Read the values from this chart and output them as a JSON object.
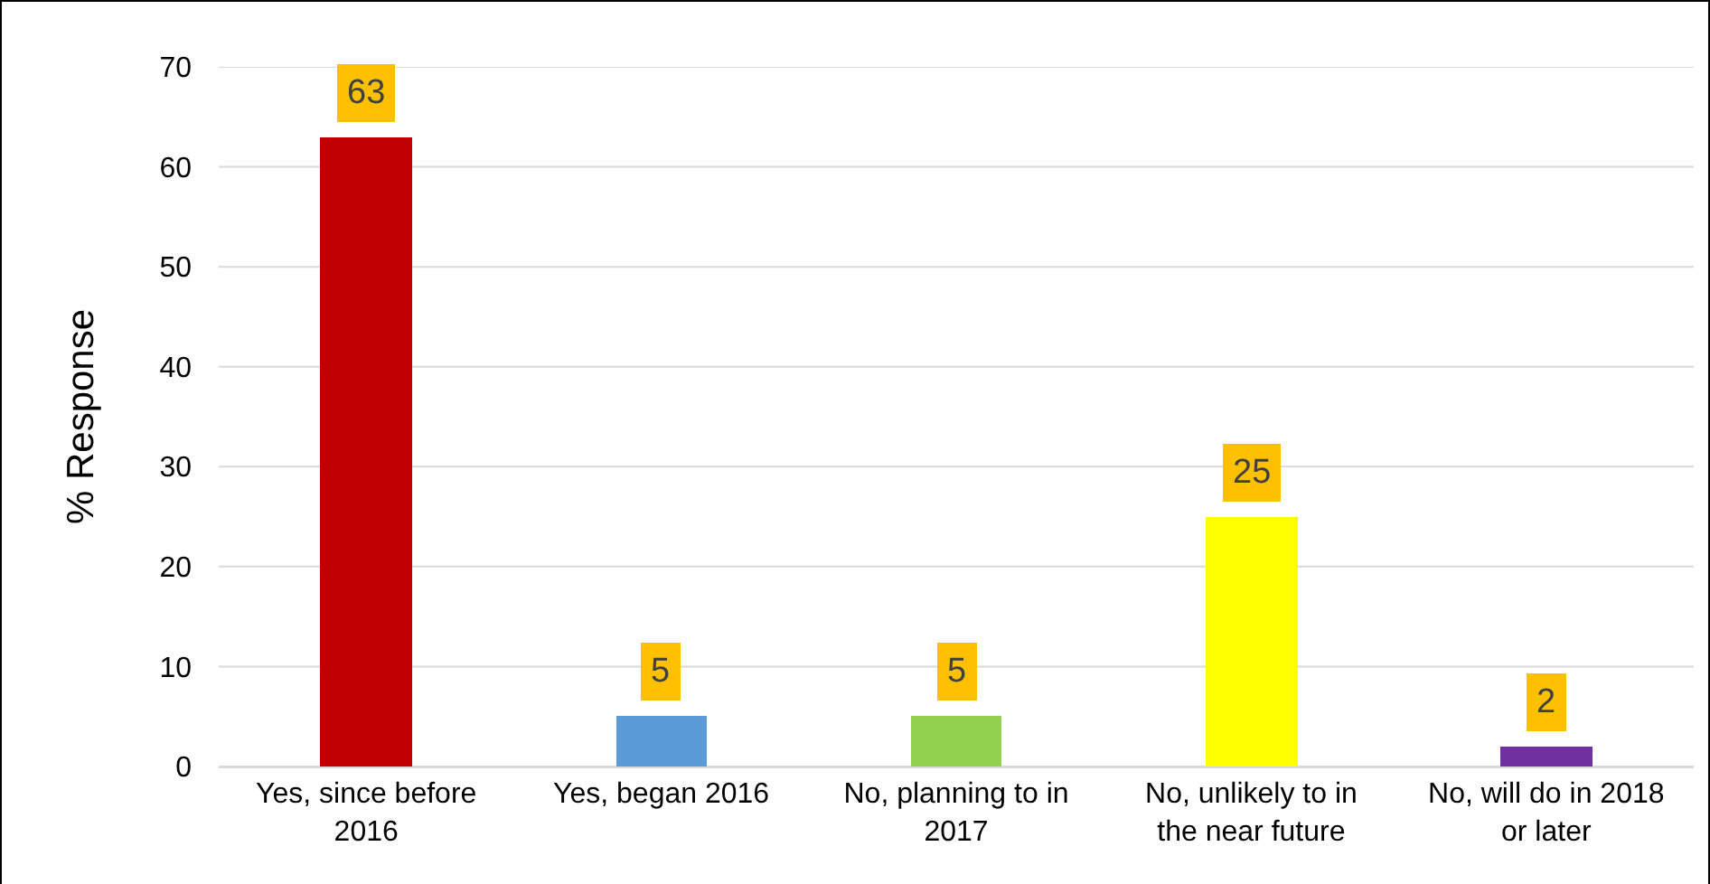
{
  "chart_data": {
    "type": "bar",
    "ylabel": "% Response",
    "categories": [
      "Yes, since before 2016",
      "Yes, began 2016",
      "No, planning to in 2017",
      "No, unlikely to in the near future",
      "No, will do in 2018 or later"
    ],
    "values": [
      63,
      5,
      5,
      25,
      2
    ],
    "colors": [
      "#c00000",
      "#5b9bd5",
      "#92d050",
      "#ffff00",
      "#7030a0"
    ],
    "ylim": [
      0,
      70
    ],
    "yticks": [
      0,
      10,
      20,
      30,
      40,
      50,
      60,
      70
    ],
    "grid": "y",
    "data_labels": true
  }
}
